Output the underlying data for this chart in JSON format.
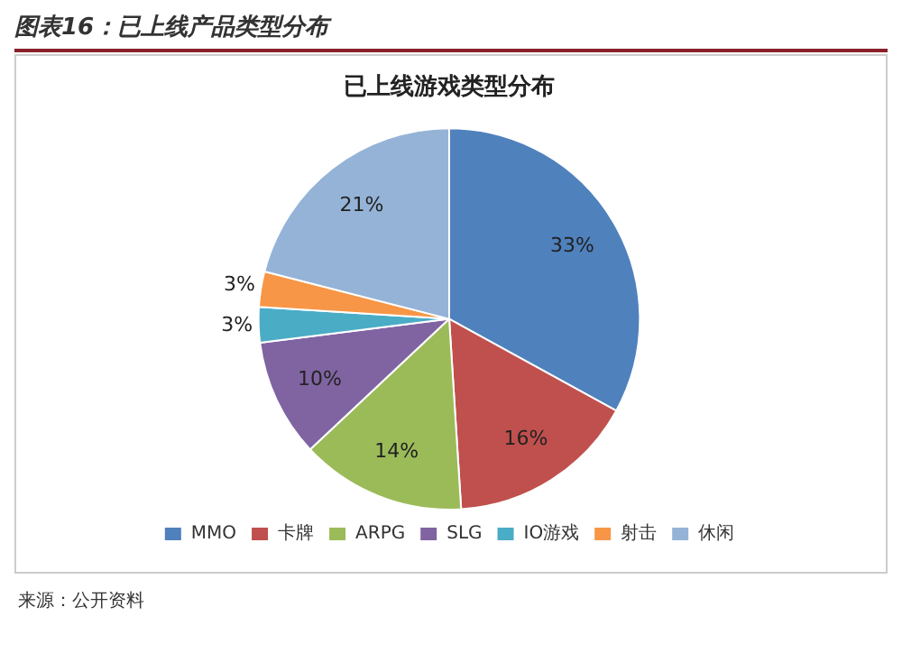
{
  "chart_data": {
    "type": "pie",
    "title": "图表16：已上线产品类型分布",
    "subtitle": "已上线游戏类型分布",
    "categories": [
      "MMO",
      "卡牌",
      "ARPG",
      "SLG",
      "IO游戏",
      "射击",
      "休闲"
    ],
    "values": [
      33,
      16,
      14,
      10,
      3,
      3,
      21
    ],
    "colors": [
      "#4f81bd",
      "#c0504d",
      "#9bbb59",
      "#8064a2",
      "#4bacc6",
      "#f79646",
      "#95b3d7"
    ],
    "value_labels": [
      "33%",
      "16%",
      "14%",
      "10%",
      "3%",
      "3%",
      "21%"
    ],
    "legend": "bottom",
    "annotations": [
      "来源：公开资料"
    ]
  }
}
